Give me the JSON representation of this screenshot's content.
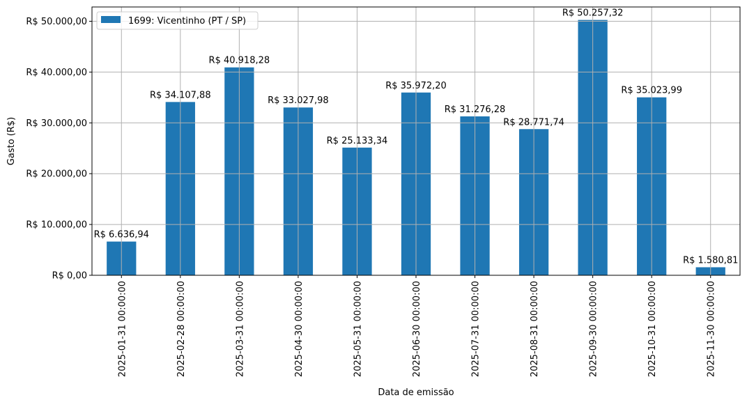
{
  "chart_data": {
    "type": "bar",
    "title": "",
    "xlabel": "Data de emissão",
    "ylabel": "Gasto (R$)",
    "ylim": [
      0,
      52800
    ],
    "grid": true,
    "legend_position": "upper left",
    "bar_color": "#1f77b4",
    "categories": [
      "2025-01-31 00:00:00",
      "2025-02-28 00:00:00",
      "2025-03-31 00:00:00",
      "2025-04-30 00:00:00",
      "2025-05-31 00:00:00",
      "2025-06-30 00:00:00",
      "2025-07-31 00:00:00",
      "2025-08-31 00:00:00",
      "2025-09-30 00:00:00",
      "2025-10-31 00:00:00",
      "2025-11-30 00:00:00"
    ],
    "series": [
      {
        "name": "1699: Vicentinho (PT / SP)",
        "values": [
          6636.94,
          34107.88,
          40918.28,
          33027.98,
          25133.34,
          35972.2,
          31276.28,
          28771.74,
          50257.32,
          35023.99,
          1580.81
        ],
        "labels": [
          "R$ 6.636,94",
          "R$ 34.107,88",
          "R$ 40.918,28",
          "R$ 33.027,98",
          "R$ 25.133,34",
          "R$ 35.972,20",
          "R$ 31.276,28",
          "R$ 28.771,74",
          "R$ 50.257,32",
          "R$ 35.023,99",
          "R$ 1.580,81"
        ]
      }
    ],
    "yticks": [
      0,
      10000,
      20000,
      30000,
      40000,
      50000
    ],
    "ytick_labels": [
      "R$ 0,00",
      "R$ 10.000,00",
      "R$ 20.000,00",
      "R$ 30.000,00",
      "R$ 40.000,00",
      "R$ 50.000,00"
    ]
  }
}
